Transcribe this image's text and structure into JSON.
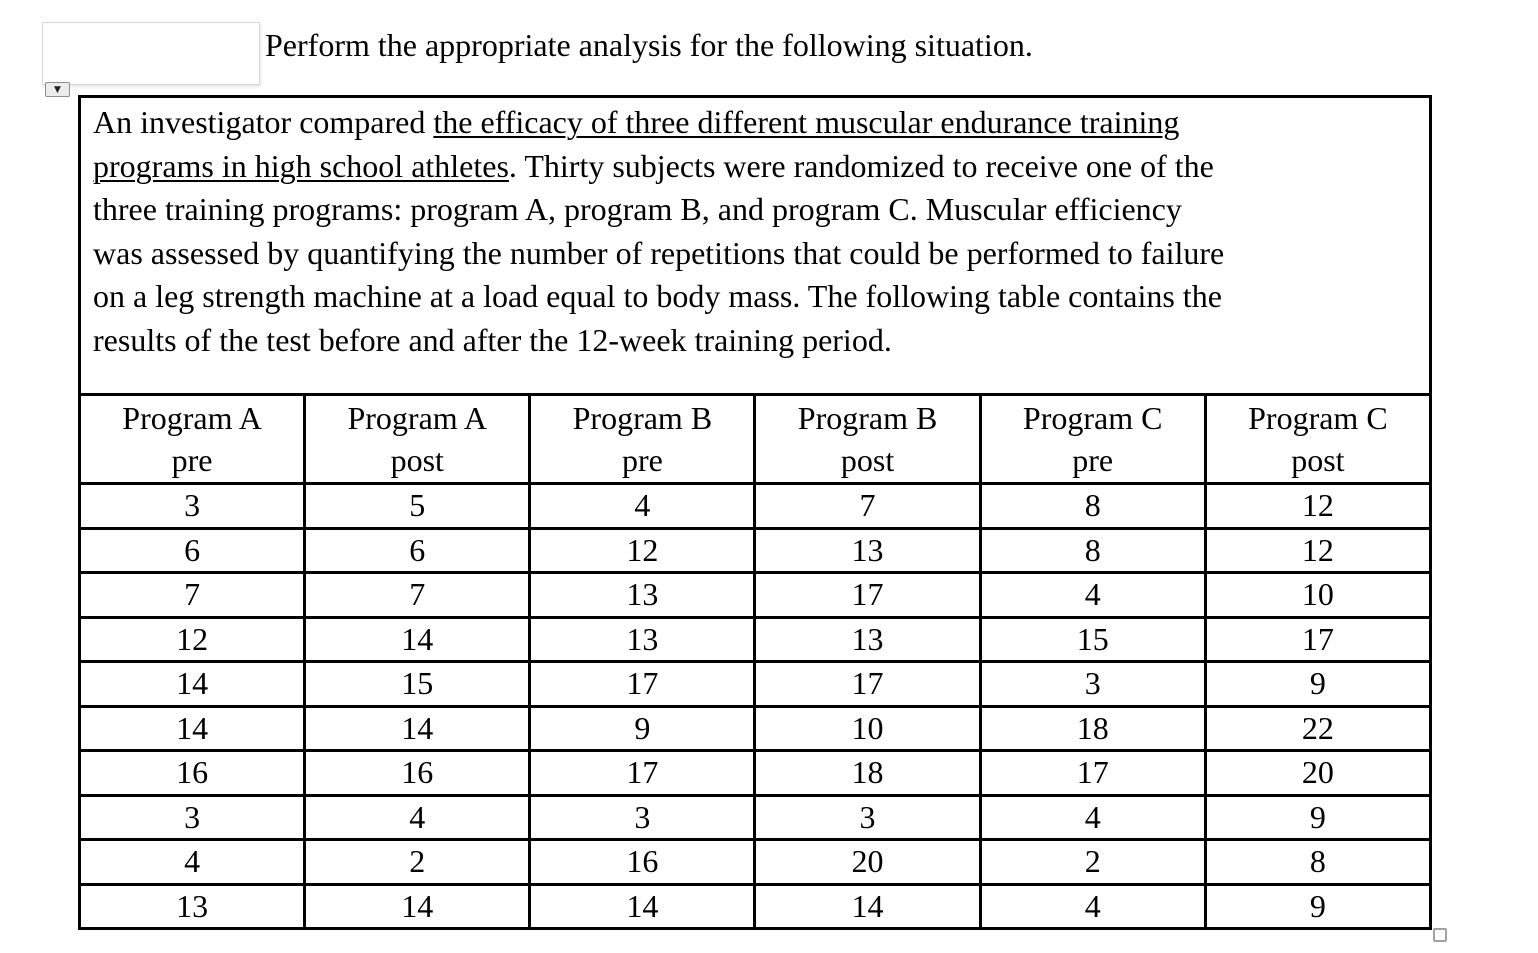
{
  "title": "Perform the appropriate analysis for the following situation.",
  "icons": {
    "dropdown_arrow": "▼"
  },
  "paragraph": {
    "lines": [
      {
        "pre": "An investigator compared ",
        "u": "the efficacy of three different muscular endurance training",
        "post": ""
      },
      {
        "pre": "",
        "u": "programs in high school athletes",
        "post": ". Thirty subjects were randomized to receive one of the"
      },
      {
        "pre": "three training programs: program A, program B, and program C. Muscular efficiency",
        "u": "",
        "post": ""
      },
      {
        "pre": "was assessed by quantifying the number of repetitions that could be performed to failure",
        "u": "",
        "post": ""
      },
      {
        "pre": "on a leg strength machine at a load equal to body mass. The following table contains the",
        "u": "",
        "post": ""
      },
      {
        "pre": "results of the test before and after the 12-week training period.",
        "u": "",
        "post": ""
      }
    ]
  },
  "table": {
    "headers": [
      {
        "program": "Program A",
        "phase": "pre"
      },
      {
        "program": "Program A",
        "phase": "post"
      },
      {
        "program": "Program B",
        "phase": "pre"
      },
      {
        "program": "Program B",
        "phase": "post"
      },
      {
        "program": "Program C",
        "phase": "pre"
      },
      {
        "program": "Program C",
        "phase": "post"
      }
    ],
    "rows": [
      [
        3,
        5,
        4,
        7,
        8,
        12
      ],
      [
        6,
        6,
        12,
        13,
        8,
        12
      ],
      [
        7,
        7,
        13,
        17,
        4,
        10
      ],
      [
        12,
        14,
        13,
        13,
        15,
        17
      ],
      [
        14,
        15,
        17,
        17,
        3,
        9
      ],
      [
        14,
        14,
        9,
        10,
        18,
        22
      ],
      [
        16,
        16,
        17,
        18,
        17,
        20
      ],
      [
        3,
        4,
        3,
        3,
        4,
        9
      ],
      [
        4,
        2,
        16,
        20,
        2,
        8
      ],
      [
        13,
        14,
        14,
        14,
        4,
        9
      ]
    ]
  },
  "colors": {
    "text": "#000000",
    "border": "#000000",
    "background": "#ffffff"
  }
}
